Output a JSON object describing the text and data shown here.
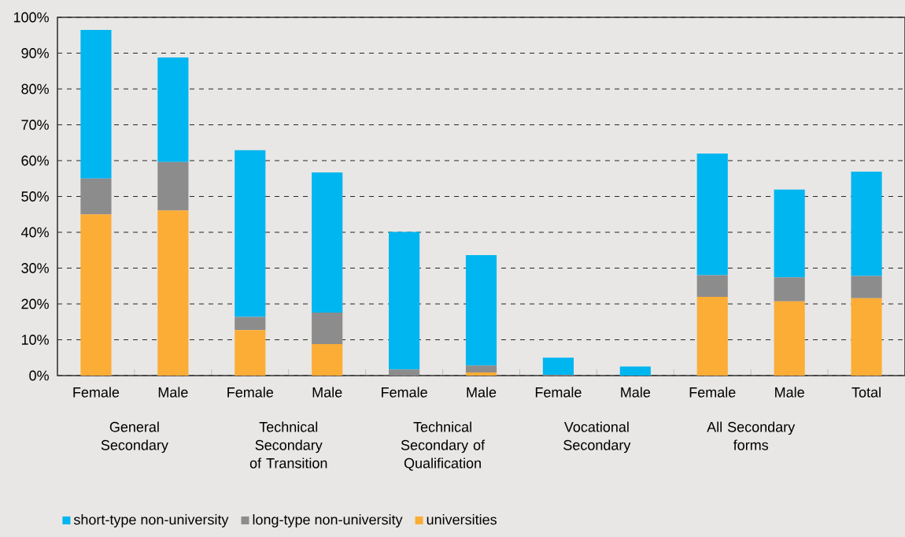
{
  "chart_data": {
    "type": "bar",
    "stacked": true,
    "categories": [
      "Female",
      "Male",
      "Female",
      "Male",
      "Female",
      "Male",
      "Female",
      "Male",
      "Female",
      "Male",
      "Total"
    ],
    "series": [
      {
        "name": "universities",
        "color": "#fbad36",
        "values": [
          45.0,
          46.1,
          12.7,
          8.8,
          0,
          0.9,
          0,
          0,
          22.0,
          20.7,
          21.6
        ]
      },
      {
        "name": "long-type non-university",
        "color": "#8c8c8c",
        "values": [
          10.0,
          13.5,
          3.7,
          8.8,
          1.7,
          1.9,
          0.2,
          0,
          6.0,
          6.7,
          6.2
        ]
      },
      {
        "name": "short-type non-university",
        "color": "#00b6f0",
        "values": [
          41.5,
          29.2,
          46.5,
          39.1,
          38.4,
          30.8,
          4.8,
          2.5,
          34.0,
          24.5,
          29.1
        ]
      }
    ],
    "ylim": [
      0,
      100
    ],
    "yticks": [
      {
        "value": 0,
        "label": "0%"
      },
      {
        "value": 10,
        "label": "10%"
      },
      {
        "value": 20,
        "label": "20%"
      },
      {
        "value": 30,
        "label": "30%"
      },
      {
        "value": 40,
        "label": "40%"
      },
      {
        "value": 50,
        "label": "50%"
      },
      {
        "value": 60,
        "label": "60%"
      },
      {
        "value": 70,
        "label": "70%"
      },
      {
        "value": 80,
        "label": "80%"
      },
      {
        "value": 90,
        "label": "90%"
      },
      {
        "value": 100,
        "label": "100%"
      }
    ],
    "grid": "y",
    "legend": "bottom left",
    "annotations": [
      "General Secondary",
      "Technical Secondary of Transition",
      "Technical Secondary of Qualification",
      "Vocational Secondary",
      "All Secondary forms"
    ]
  }
}
